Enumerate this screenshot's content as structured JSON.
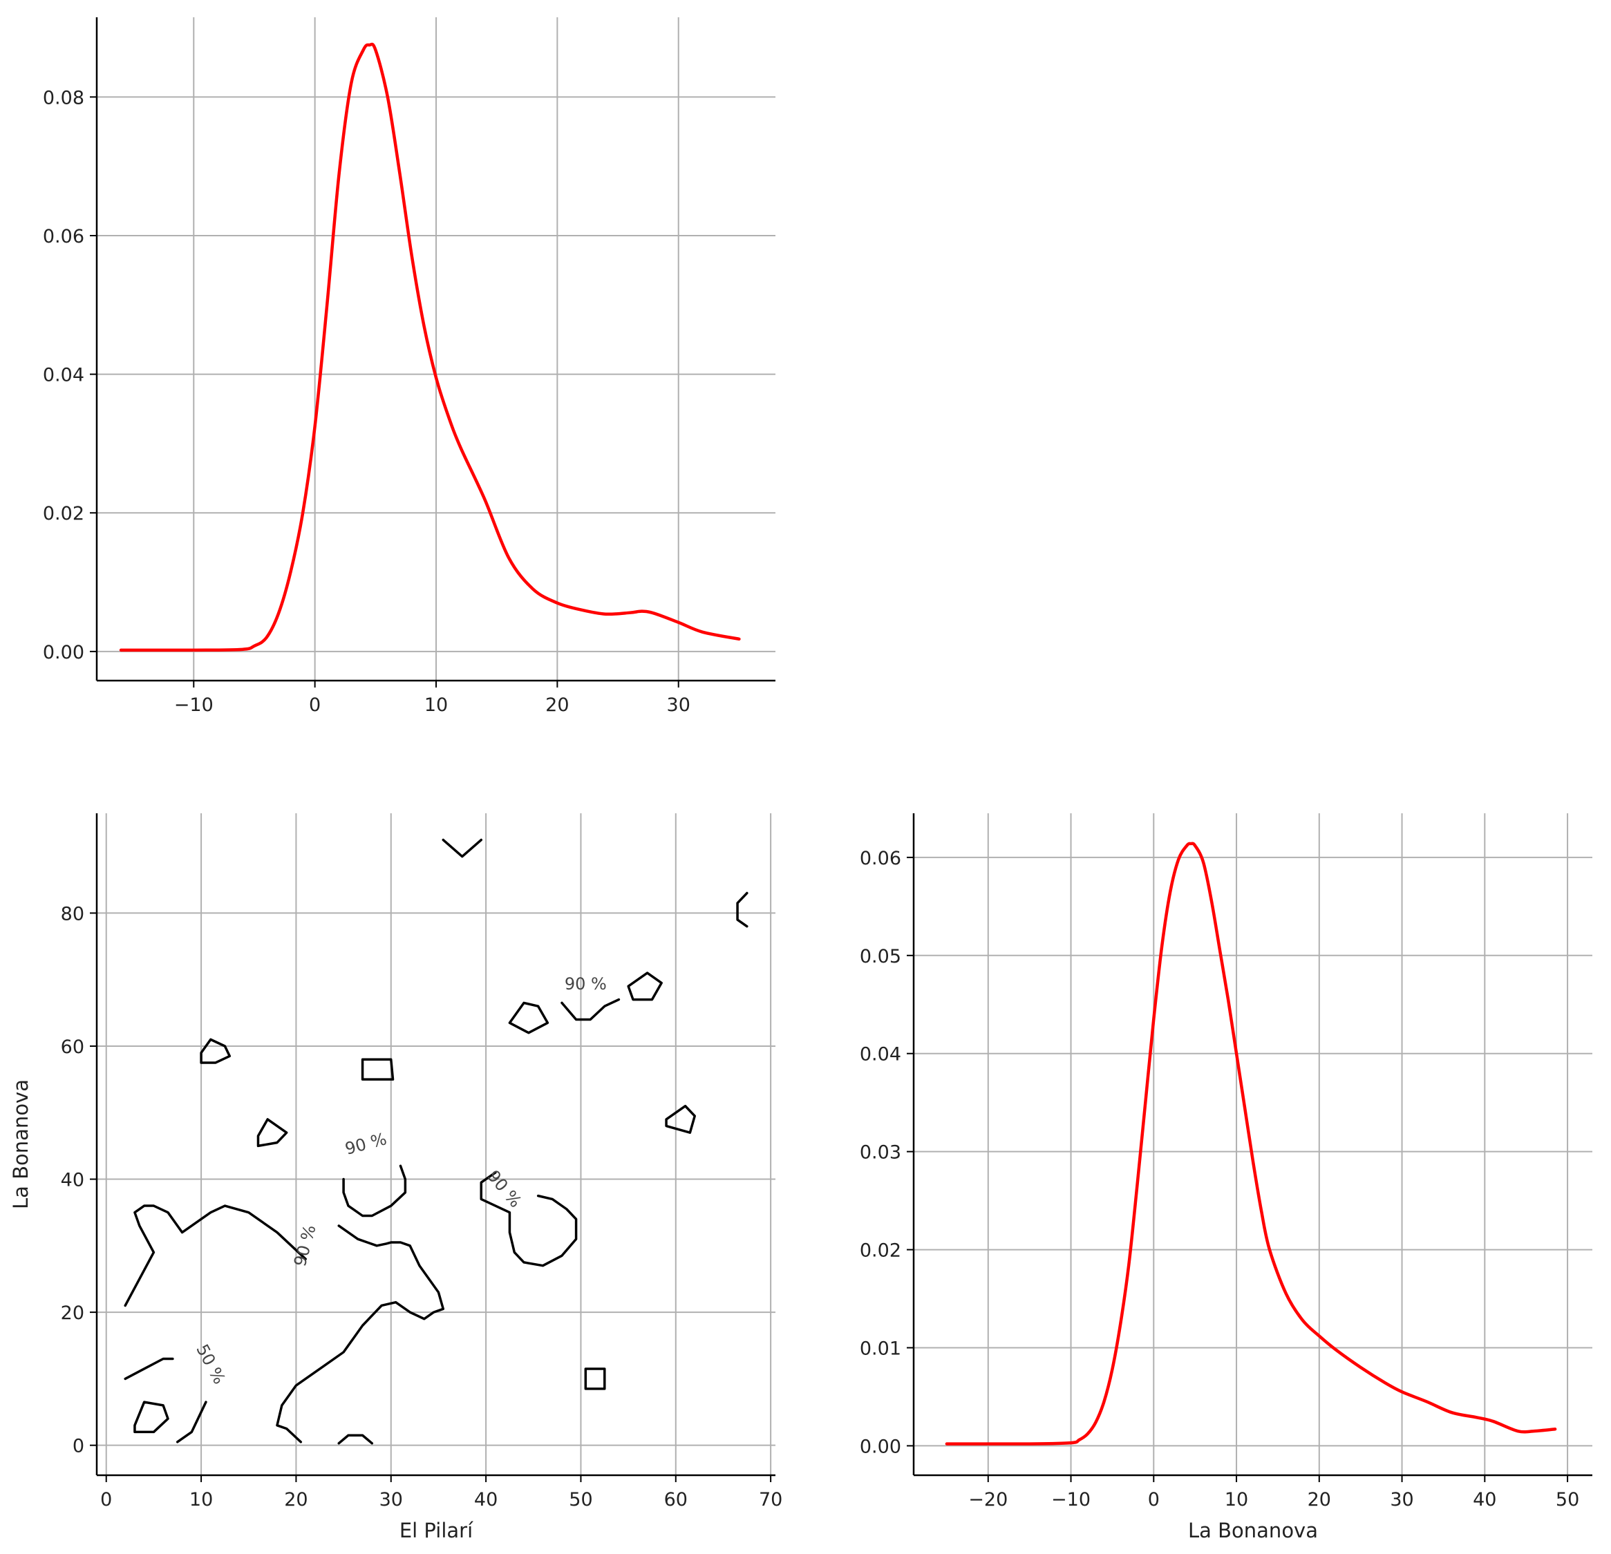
{
  "chart_data": [
    {
      "id": "kde-el-pilari",
      "type": "line",
      "title": "",
      "xlabel": "",
      "ylabel": "",
      "xlim": [
        -18,
        38
      ],
      "ylim": [
        -0.0042,
        0.0915
      ],
      "xticks": [
        -10,
        0,
        10,
        20,
        30
      ],
      "xtick_labels": [
        "−10",
        "0",
        "10",
        "20",
        "30"
      ],
      "yticks": [
        0.0,
        0.02,
        0.04,
        0.06,
        0.08
      ],
      "ytick_labels": [
        "0.00",
        "0.02",
        "0.04",
        "0.06",
        "0.08"
      ],
      "grid": true,
      "series": [
        {
          "color": "#ff0000",
          "x": [
            -16,
            -10,
            -6,
            -5,
            -4,
            -3,
            -2,
            -1,
            0,
            1,
            2,
            3,
            4,
            4.5,
            5,
            6,
            7,
            8,
            9,
            10,
            11,
            12,
            14,
            16,
            18,
            20,
            22,
            24,
            26,
            27,
            28,
            30,
            32,
            35
          ],
          "y": [
            0.0002,
            0.0002,
            0.0003,
            0.0008,
            0.002,
            0.0055,
            0.0115,
            0.02,
            0.0325,
            0.05,
            0.069,
            0.082,
            0.0868,
            0.0875,
            0.0868,
            0.08,
            0.069,
            0.057,
            0.047,
            0.0395,
            0.034,
            0.0295,
            0.022,
            0.0135,
            0.009,
            0.007,
            0.006,
            0.0054,
            0.0056,
            0.0058,
            0.0055,
            0.0042,
            0.0028,
            0.0018
          ]
        }
      ]
    },
    {
      "id": "contour-el-pilari-vs-la-bonanova",
      "type": "contour",
      "title": "",
      "xlabel": "El Pilarí",
      "ylabel": "La Bonanova",
      "xlim": [
        -1,
        70.5
      ],
      "ylim": [
        -4.5,
        95
      ],
      "xticks": [
        0,
        10,
        20,
        30,
        40,
        50,
        60,
        70
      ],
      "xtick_labels": [
        "0",
        "10",
        "20",
        "30",
        "40",
        "50",
        "60",
        "70"
      ],
      "yticks": [
        0,
        20,
        40,
        60,
        80
      ],
      "ytick_labels": [
        "0",
        "20",
        "40",
        "60",
        "80"
      ],
      "grid": true,
      "contour_color": "#000000",
      "label_color": "#444444",
      "contours": [
        {
          "closed": false,
          "x": [
            2,
            3.5,
            5,
            3.5,
            3,
            4,
            5,
            6.5,
            8,
            11,
            12.5,
            15,
            18,
            21
          ],
          "y": [
            21,
            25,
            29,
            33,
            35,
            36,
            36,
            35,
            32,
            35,
            36,
            35,
            32,
            28
          ]
        },
        {
          "closed": false,
          "x": [
            2,
            4,
            6,
            7
          ],
          "y": [
            10,
            11.5,
            13,
            13
          ]
        },
        {
          "closed": true,
          "x": [
            3,
            4,
            6,
            6.5,
            5,
            3
          ],
          "y": [
            3,
            6.5,
            6,
            4,
            2,
            2
          ]
        },
        {
          "closed": false,
          "x": [
            7.5,
            9,
            10,
            10.5
          ],
          "y": [
            0.5,
            2,
            5,
            6.5
          ]
        },
        {
          "closed": false,
          "x": [
            20.5,
            19,
            18,
            18.5,
            20,
            23,
            25,
            27,
            29,
            30.5,
            32,
            33.5,
            34.5,
            35.5,
            35,
            34,
            33,
            32,
            31,
            30,
            29.5,
            28.5,
            27.5,
            26.5,
            25.5,
            24.5
          ],
          "y": [
            0.5,
            2.5,
            3,
            6,
            9,
            12,
            14,
            18,
            21,
            21.5,
            20,
            19,
            20,
            20.5,
            23,
            25,
            27,
            30,
            30.5,
            30.5,
            30.3,
            30,
            30.5,
            31,
            32,
            33
          ]
        },
        {
          "closed": false,
          "x": [
            24.5,
            25.5,
            27,
            28
          ],
          "y": [
            0.3,
            1.5,
            1.5,
            0.3
          ]
        },
        {
          "closed": true,
          "x": [
            10,
            11,
            12.5,
            13,
            11.5,
            10
          ],
          "y": [
            59,
            61,
            60,
            58.5,
            57.5,
            57.5
          ]
        },
        {
          "closed": true,
          "x": [
            16,
            17,
            19,
            18,
            16
          ],
          "y": [
            46.5,
            49,
            47,
            45.5,
            45
          ]
        },
        {
          "closed": true,
          "x": [
            27,
            30,
            30.2,
            28,
            27
          ],
          "y": [
            58,
            58,
            55,
            55,
            55
          ]
        },
        {
          "closed": false,
          "x": [
            31,
            31.5,
            31.5,
            30,
            28,
            27,
            25.5,
            25,
            25
          ],
          "y": [
            42,
            40,
            38,
            36,
            34.5,
            34.5,
            36,
            38,
            40
          ]
        },
        {
          "closed": false,
          "x": [
            41,
            39.5,
            39.5,
            41,
            42.5,
            42.5,
            43,
            44,
            46,
            48,
            49.5,
            49.5,
            48.5,
            47,
            45.5
          ],
          "y": [
            41,
            39.5,
            37,
            36,
            35,
            32,
            29,
            27.5,
            27,
            28.5,
            31,
            34,
            35.5,
            37,
            37.5
          ]
        },
        {
          "closed": true,
          "x": [
            42.5,
            44,
            45.5,
            46.5,
            44.5,
            42.5
          ],
          "y": [
            63.5,
            66.5,
            66,
            63.5,
            62,
            63.5
          ]
        },
        {
          "closed": false,
          "x": [
            48,
            49.5,
            51,
            52.5,
            54
          ],
          "y": [
            66.5,
            64,
            64,
            66,
            67
          ]
        },
        {
          "closed": true,
          "x": [
            55,
            57,
            58.5,
            57.5,
            55.5,
            55
          ],
          "y": [
            69,
            71,
            69.5,
            67,
            67,
            69
          ]
        },
        {
          "closed": true,
          "x": [
            59,
            61,
            62,
            61.5,
            59
          ],
          "y": [
            49,
            51,
            49.5,
            47,
            48
          ]
        },
        {
          "closed": true,
          "x": [
            50.5,
            52.5,
            52.5,
            50.5,
            50.5
          ],
          "y": [
            11.5,
            11.5,
            8.5,
            8.5,
            11.5
          ]
        },
        {
          "closed": false,
          "x": [
            35.5,
            37.5,
            39.5
          ],
          "y": [
            91,
            88.5,
            91
          ]
        },
        {
          "closed": false,
          "x": [
            67.5,
            66.5,
            66.5,
            67.5
          ],
          "y": [
            83,
            81.5,
            79,
            78
          ]
        }
      ],
      "contour_labels": [
        {
          "text": "50 %",
          "x": 10.5,
          "y": 11.8,
          "angle": 62
        },
        {
          "text": "90 %",
          "x": 21.5,
          "y": 29.8,
          "angle": -75
        },
        {
          "text": "90 %",
          "x": 27.5,
          "y": 44.5,
          "angle": -15
        },
        {
          "text": "90 %",
          "x": 41.5,
          "y": 38,
          "angle": 50
        },
        {
          "text": "90 %",
          "x": 50.5,
          "y": 68.5,
          "angle": 0
        }
      ]
    },
    {
      "id": "kde-la-bonanova",
      "type": "line",
      "title": "",
      "xlabel": "La Bonanova",
      "ylabel": "",
      "xlim": [
        -29,
        53
      ],
      "ylim": [
        -0.003,
        0.0645
      ],
      "xticks": [
        -20,
        -10,
        0,
        10,
        20,
        30,
        40,
        50
      ],
      "xtick_labels": [
        "−20",
        "−10",
        "0",
        "10",
        "20",
        "30",
        "40",
        "50"
      ],
      "yticks": [
        0.0,
        0.01,
        0.02,
        0.03,
        0.04,
        0.05,
        0.06
      ],
      "ytick_labels": [
        "0.00",
        "0.01",
        "0.02",
        "0.03",
        "0.04",
        "0.05",
        "0.06"
      ],
      "grid": true,
      "series": [
        {
          "color": "#ff0000",
          "x": [
            -25,
            -15,
            -10,
            -9,
            -8,
            -7,
            -6,
            -5,
            -4,
            -3,
            -2,
            -1,
            0,
            1,
            2,
            3,
            4,
            4.5,
            5,
            6,
            7,
            8,
            9,
            10,
            11,
            12,
            13,
            14,
            16,
            18,
            20,
            22,
            25,
            28,
            30,
            33,
            36,
            39,
            41,
            44,
            46,
            48.5
          ],
          "y": [
            0.0002,
            0.0002,
            0.0003,
            0.0006,
            0.0012,
            0.0024,
            0.0045,
            0.0078,
            0.0125,
            0.0185,
            0.0265,
            0.035,
            0.0435,
            0.051,
            0.0565,
            0.0598,
            0.0612,
            0.0614,
            0.0612,
            0.0595,
            0.0555,
            0.0505,
            0.0455,
            0.04,
            0.0345,
            0.029,
            0.024,
            0.02,
            0.0155,
            0.0128,
            0.0112,
            0.0098,
            0.008,
            0.0064,
            0.0055,
            0.0045,
            0.0034,
            0.0029,
            0.0025,
            0.0015,
            0.0015,
            0.0017
          ]
        }
      ]
    }
  ]
}
